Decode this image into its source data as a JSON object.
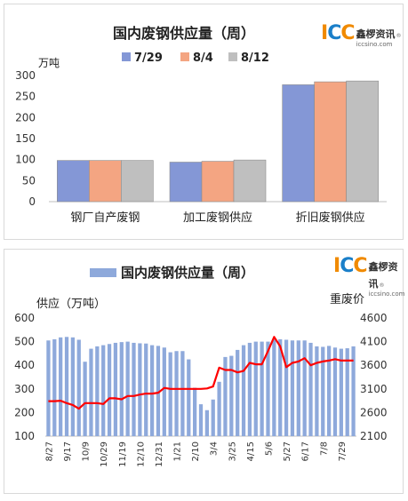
{
  "chart_data": [
    {
      "type": "bar",
      "title": "国内废钢供应量（周）",
      "ylabel": "万吨",
      "ylim": [
        0,
        300
      ],
      "yticks": [
        0,
        50,
        100,
        150,
        200,
        250,
        300
      ],
      "categories": [
        "钢厂自产废钢",
        "加工废钢供应",
        "折旧废钢供应"
      ],
      "series": [
        {
          "name": "7/29",
          "color": "#8497d6",
          "values": [
            98,
            94,
            278
          ]
        },
        {
          "name": "8/4",
          "color": "#f4a582",
          "values": [
            98,
            96,
            285
          ]
        },
        {
          "name": "8/12",
          "color": "#bfbfbf",
          "values": [
            98,
            99,
            287
          ]
        }
      ],
      "legend": "top",
      "grid": false
    },
    {
      "type": "bar+line",
      "title": "国内废钢供应量（周）",
      "ylabel_left": "供应（万吨）",
      "ylabel_right": "重废价",
      "ylim_left": [
        100,
        600
      ],
      "yticks_left": [
        100,
        200,
        300,
        400,
        500,
        600
      ],
      "ylim_right": [
        2100,
        4600
      ],
      "yticks_right": [
        2100,
        2600,
        3100,
        3600,
        4100,
        4600
      ],
      "x_tick_labels": [
        "8/27",
        "9/17",
        "10/9",
        "10/29",
        "11/19",
        "12/10",
        "12/31",
        "1/21",
        "2/10",
        "3/4",
        "3/25",
        "4/15",
        "5/6",
        "5/27",
        "6/17",
        "7/8",
        "7/29"
      ],
      "bar_series": {
        "name": "国内废钢供应量（周）",
        "color": "#8ea9db",
        "values": [
          505,
          510,
          518,
          520,
          518,
          508,
          415,
          470,
          480,
          485,
          490,
          495,
          498,
          500,
          495,
          493,
          492,
          485,
          482,
          475,
          455,
          460,
          460,
          425,
          305,
          235,
          210,
          255,
          330,
          435,
          440,
          465,
          485,
          495,
          500,
          500,
          500,
          510,
          510,
          508,
          505,
          505,
          505,
          495,
          480,
          478,
          482,
          475,
          470,
          472,
          480
        ]
      },
      "line_series": {
        "name": "重废价",
        "color": "#ff0000",
        "values": [
          2840,
          2840,
          2850,
          2800,
          2760,
          2680,
          2800,
          2800,
          2800,
          2780,
          2900,
          2900,
          2880,
          2950,
          2950,
          2980,
          3000,
          3000,
          3020,
          3120,
          3100,
          3100,
          3100,
          3100,
          3100,
          3100,
          3110,
          3150,
          3550,
          3500,
          3500,
          3450,
          3480,
          3650,
          3620,
          3620,
          3900,
          4200,
          4000,
          3560,
          3650,
          3680,
          3750,
          3600,
          3650,
          3680,
          3700,
          3730,
          3700,
          3700,
          3700
        ]
      },
      "legend": "top",
      "grid": false
    }
  ],
  "logo": {
    "mark": "ICC",
    "name_cn": "鑫椤资讯",
    "url": "iccsino.com",
    "reg": "®"
  },
  "colors": {
    "logo_orange": "#f08a00",
    "logo_blue": "#1a7fc9"
  }
}
